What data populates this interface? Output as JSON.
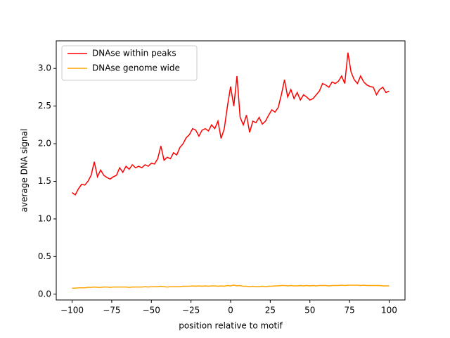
{
  "chart_data": {
    "type": "line",
    "x_label": "position relative to motif",
    "y_label": "average DNA signal",
    "x": [
      -100,
      -98,
      -96,
      -94,
      -92,
      -90,
      -88,
      -86,
      -84,
      -82,
      -80,
      -78,
      -76,
      -74,
      -72,
      -70,
      -68,
      -66,
      -64,
      -62,
      -60,
      -58,
      -56,
      -54,
      -52,
      -50,
      -48,
      -46,
      -44,
      -42,
      -40,
      -38,
      -36,
      -34,
      -32,
      -30,
      -28,
      -26,
      -24,
      -22,
      -20,
      -18,
      -16,
      -14,
      -12,
      -10,
      -8,
      -6,
      -4,
      -2,
      0,
      2,
      4,
      6,
      8,
      10,
      12,
      14,
      16,
      18,
      20,
      22,
      24,
      26,
      28,
      30,
      32,
      34,
      36,
      38,
      40,
      42,
      44,
      46,
      48,
      50,
      52,
      54,
      56,
      58,
      60,
      62,
      64,
      66,
      68,
      70,
      72,
      74,
      76,
      78,
      80,
      82,
      84,
      86,
      88,
      90,
      92,
      94,
      96,
      98,
      100
    ],
    "series": [
      {
        "name": "DNAse within peaks",
        "color": "#ff0000",
        "values": [
          1.35,
          1.32,
          1.4,
          1.46,
          1.45,
          1.5,
          1.58,
          1.76,
          1.56,
          1.65,
          1.58,
          1.55,
          1.53,
          1.56,
          1.58,
          1.68,
          1.62,
          1.7,
          1.66,
          1.72,
          1.68,
          1.7,
          1.68,
          1.72,
          1.7,
          1.74,
          1.73,
          1.8,
          1.97,
          1.78,
          1.82,
          1.8,
          1.88,
          1.85,
          1.95,
          2.0,
          2.08,
          2.12,
          2.2,
          2.18,
          2.1,
          2.18,
          2.2,
          2.17,
          2.25,
          2.2,
          2.3,
          2.07,
          2.2,
          2.5,
          2.76,
          2.5,
          2.9,
          2.35,
          2.25,
          2.38,
          2.15,
          2.3,
          2.28,
          2.35,
          2.26,
          2.3,
          2.38,
          2.45,
          2.42,
          2.48,
          2.65,
          2.85,
          2.62,
          2.72,
          2.6,
          2.68,
          2.58,
          2.65,
          2.62,
          2.58,
          2.6,
          2.65,
          2.7,
          2.8,
          2.78,
          2.75,
          2.82,
          2.8,
          2.83,
          2.9,
          2.8,
          3.21,
          2.95,
          2.85,
          2.8,
          2.9,
          2.82,
          2.78,
          2.76,
          2.75,
          2.65,
          2.72,
          2.75,
          2.68,
          2.7
        ]
      },
      {
        "name": "DNAse genome wide",
        "color": "#ffa500",
        "values": [
          0.08,
          0.08,
          0.085,
          0.085,
          0.085,
          0.09,
          0.09,
          0.095,
          0.09,
          0.09,
          0.095,
          0.095,
          0.09,
          0.095,
          0.095,
          0.095,
          0.095,
          0.095,
          0.09,
          0.095,
          0.095,
          0.095,
          0.095,
          0.1,
          0.095,
          0.1,
          0.1,
          0.1,
          0.105,
          0.1,
          0.095,
          0.1,
          0.1,
          0.1,
          0.1,
          0.105,
          0.105,
          0.105,
          0.11,
          0.105,
          0.11,
          0.105,
          0.11,
          0.105,
          0.11,
          0.11,
          0.105,
          0.11,
          0.105,
          0.115,
          0.11,
          0.12,
          0.11,
          0.115,
          0.105,
          0.105,
          0.1,
          0.105,
          0.1,
          0.1,
          0.105,
          0.1,
          0.105,
          0.105,
          0.11,
          0.11,
          0.115,
          0.115,
          0.11,
          0.115,
          0.11,
          0.11,
          0.115,
          0.11,
          0.115,
          0.11,
          0.115,
          0.11,
          0.115,
          0.115,
          0.115,
          0.11,
          0.115,
          0.115,
          0.115,
          0.12,
          0.115,
          0.12,
          0.12,
          0.12,
          0.12,
          0.115,
          0.12,
          0.115,
          0.115,
          0.115,
          0.115,
          0.115,
          0.11,
          0.11,
          0.11
        ]
      }
    ],
    "xlim": [
      -110,
      110
    ],
    "ylim": [
      -0.077,
      3.367
    ],
    "xticks": [
      {
        "value": -100,
        "label": "−100"
      },
      {
        "value": -75,
        "label": "−75"
      },
      {
        "value": -50,
        "label": "−50"
      },
      {
        "value": -25,
        "label": "−25"
      },
      0,
      25,
      50,
      75,
      100
    ],
    "yticks": [
      {
        "value": 0,
        "label": "0.0"
      },
      {
        "value": 0.5,
        "label": "0.5"
      },
      {
        "value": 1,
        "label": "1.0"
      },
      {
        "value": 1.5,
        "label": "1.5"
      },
      {
        "value": 2,
        "label": "2.0"
      },
      {
        "value": 2.5,
        "label": "2.5"
      },
      {
        "value": 3,
        "label": "3.0"
      }
    ],
    "grid": false,
    "legend": "upper-left"
  }
}
